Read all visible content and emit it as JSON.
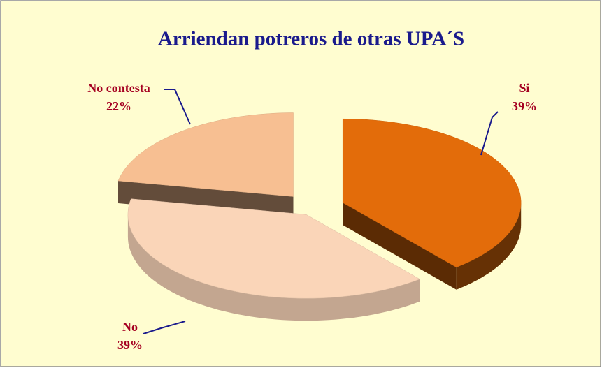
{
  "chart_data": {
    "type": "pie",
    "title": "Arriendan potreros de otras UPA´S",
    "categories": [
      "Si",
      "No",
      "No contesta"
    ],
    "values": [
      39,
      39,
      22
    ],
    "value_labels": [
      "39%",
      "39%",
      "22%"
    ],
    "colors": [
      "#e36c0a",
      "#fad5b8",
      "#f7bf92"
    ]
  }
}
